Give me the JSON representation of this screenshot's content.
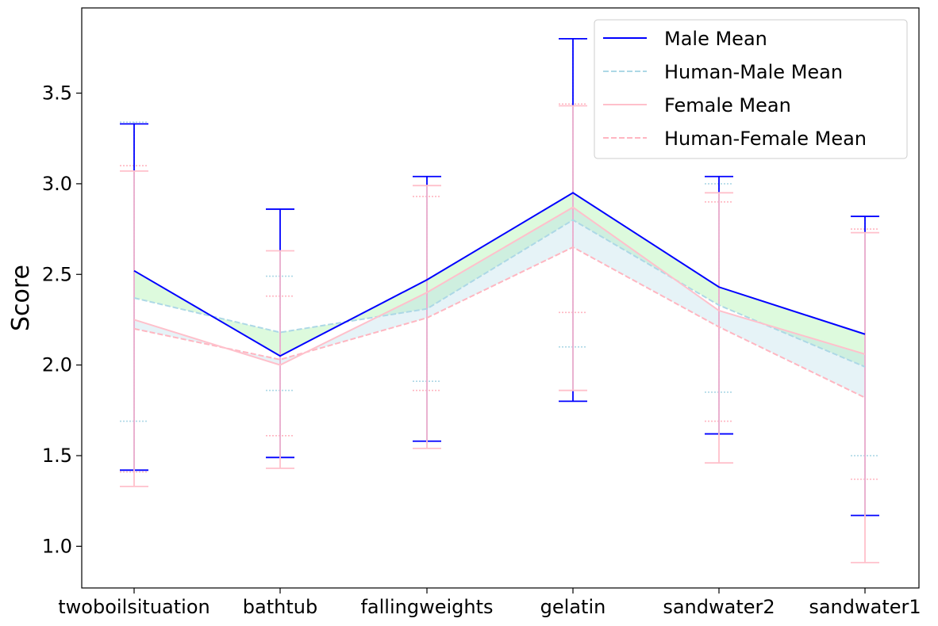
{
  "chart_data": {
    "type": "line",
    "title": "",
    "xlabel": "",
    "ylabel": "Score",
    "ylim": [
      0.77,
      3.97
    ],
    "yticks": [
      1.0,
      1.5,
      2.0,
      2.5,
      3.0,
      3.5
    ],
    "ytick_labels": [
      "1.0",
      "1.5",
      "2.0",
      "2.5",
      "3.0",
      "3.5"
    ],
    "categories": [
      "twoboilsituation",
      "bathtub",
      "fallingweights",
      "gelatin",
      "sandwater2",
      "sandwater1"
    ],
    "legend_position": "top-right",
    "grid": false,
    "series": [
      {
        "name": "Male Mean",
        "color": "#0000ff",
        "linestyle": "solid",
        "values": [
          2.52,
          2.05,
          2.47,
          2.95,
          2.43,
          2.17
        ],
        "err_low": [
          1.42,
          1.49,
          1.58,
          1.8,
          1.62,
          1.17
        ],
        "err_high": [
          3.33,
          2.86,
          3.04,
          3.8,
          3.04,
          2.82
        ]
      },
      {
        "name": "Human-Male Mean",
        "color": "#add8e6",
        "linestyle": "dashed",
        "values": [
          2.37,
          2.18,
          2.31,
          2.8,
          2.33,
          1.99
        ],
        "err_low": [
          1.69,
          1.86,
          1.91,
          2.1,
          1.85,
          1.5
        ],
        "err_high": [
          3.34,
          2.49,
          3.04,
          3.8,
          3.0,
          2.82
        ]
      },
      {
        "name": "Female Mean",
        "color": "#ffc0cb",
        "linestyle": "solid",
        "values": [
          2.25,
          2.0,
          2.4,
          2.87,
          2.3,
          2.06
        ],
        "err_low": [
          1.33,
          1.43,
          1.54,
          1.86,
          1.46,
          0.91
        ],
        "err_high": [
          3.07,
          2.63,
          2.99,
          3.43,
          2.95,
          2.73
        ]
      },
      {
        "name": "Human-Female Mean",
        "color": "#ffb6c1",
        "linestyle": "dashed",
        "values": [
          2.2,
          2.03,
          2.26,
          2.65,
          2.21,
          1.82
        ],
        "err_low": [
          1.41,
          1.61,
          1.86,
          2.29,
          1.69,
          1.37
        ],
        "err_high": [
          3.1,
          2.38,
          2.93,
          3.44,
          2.9,
          2.75
        ]
      }
    ],
    "fill_male": "#90ee90",
    "fill_female": "#add8e6"
  }
}
